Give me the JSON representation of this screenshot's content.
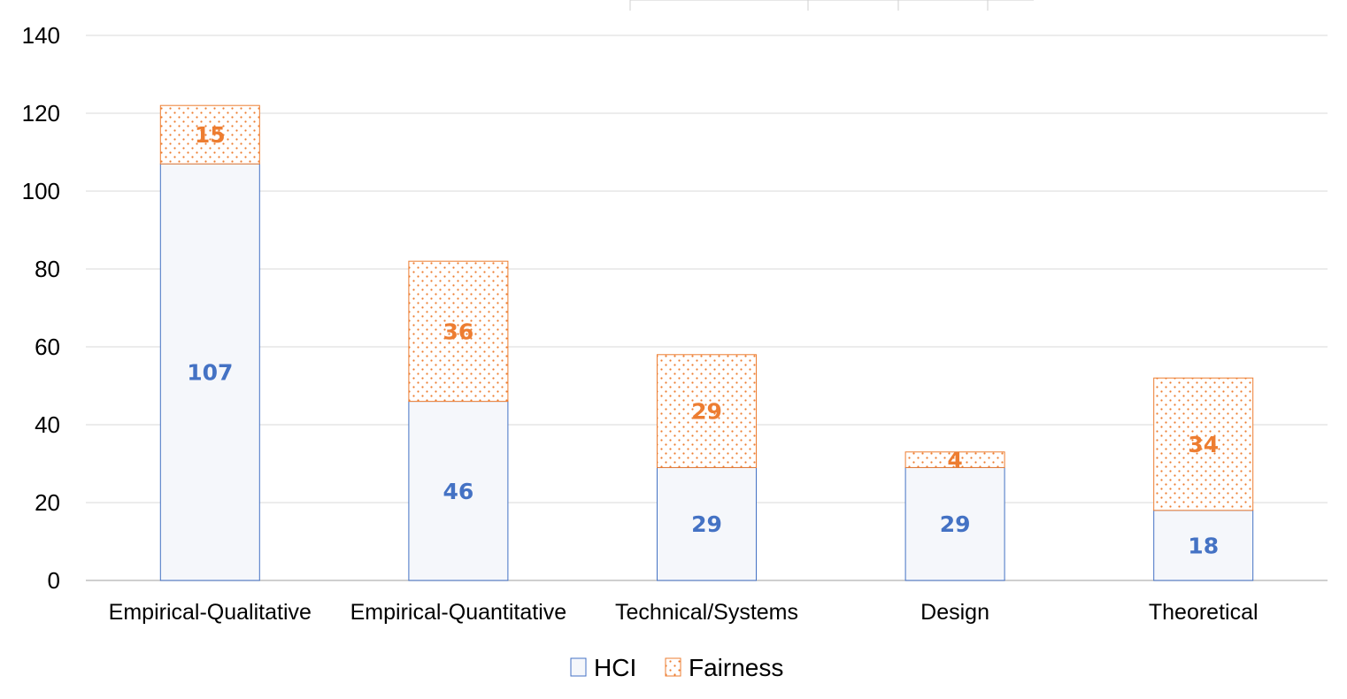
{
  "chart_data": {
    "type": "bar",
    "stacked": true,
    "categories": [
      "Empirical-Qualitative",
      "Empirical-Quantitative",
      "Technical/Systems",
      "Design",
      "Theoretical"
    ],
    "series": [
      {
        "name": "HCI",
        "values": [
          107,
          46,
          29,
          29,
          18
        ],
        "color": "#4472C4",
        "fill": "#F5F7FB"
      },
      {
        "name": "Fairness",
        "values": [
          15,
          36,
          29,
          4,
          34
        ],
        "color": "#ED7D31",
        "fill": "dotted"
      }
    ],
    "ylim": [
      0,
      140
    ],
    "yticks": [
      0,
      20,
      40,
      60,
      80,
      100,
      120,
      140
    ],
    "grid": true,
    "legend": "bottom-center",
    "title": "",
    "xlabel": "",
    "ylabel": ""
  }
}
